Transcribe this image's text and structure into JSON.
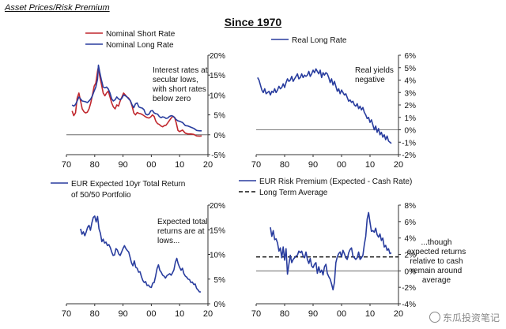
{
  "page": {
    "title": "Asset Prices/Risk Premium",
    "heading": "Since 1970",
    "watermark": "东瓜投资笔记"
  },
  "colors": {
    "blue": "#283c9e",
    "red": "#c0272d",
    "axis": "#333333"
  },
  "chart_data": [
    {
      "type": "line",
      "legend": [
        "Nominal Short Rate",
        "Nominal Long Rate"
      ],
      "annotation": [
        "Interest rates at",
        "secular lows,",
        "with short rates",
        "below zero"
      ],
      "xticks": [
        "70",
        "80",
        "90",
        "00",
        "10",
        "20"
      ],
      "yticks": [
        "-5%",
        "0%",
        "5%",
        "10%",
        "15%",
        "20%"
      ],
      "xlim": [
        1970,
        2020
      ],
      "ylim": [
        -5,
        20
      ],
      "grid": false,
      "series": [
        {
          "name": "Nominal Short Rate",
          "color": "#c0272d",
          "x": [
            1972,
            1972.6,
            1973.2,
            1973.8,
            1974.4,
            1975,
            1975.6,
            1976.2,
            1976.8,
            1977.4,
            1978,
            1978.6,
            1979.2,
            1979.8,
            1980.4,
            1981,
            1981.3,
            1981.7,
            1982.3,
            1983,
            1983.6,
            1984.2,
            1984.8,
            1985.4,
            1986,
            1986.6,
            1987.2,
            1987.8,
            1988.4,
            1989,
            1989.6,
            1990.2,
            1990.8,
            1991.4,
            1992,
            1992.6,
            1993.2,
            1993.8,
            1994.4,
            1995,
            1995.6,
            1996.2,
            1996.8,
            1997.4,
            1998,
            1998.6,
            1999.2,
            1999.8,
            2000.4,
            2001,
            2001.6,
            2002.2,
            2002.8,
            2003.4,
            2004,
            2004.6,
            2005.2,
            2005.8,
            2006.4,
            2007,
            2007.6,
            2008.2,
            2008.8,
            2009.4,
            2010,
            2011,
            2012,
            2013,
            2014,
            2015,
            2016,
            2017,
            2017.8
          ],
          "y": [
            6,
            4.8,
            5.5,
            9.2,
            10.5,
            8.5,
            6.5,
            5.8,
            5.5,
            5.7,
            6.5,
            8,
            10,
            12.2,
            13,
            16,
            17,
            15,
            13,
            10.5,
            9.8,
            10.5,
            11,
            9.5,
            8,
            7,
            6.5,
            7.5,
            7.2,
            8.5,
            9.5,
            10.5,
            10,
            9.5,
            9.2,
            8.5,
            7.2,
            5.5,
            5,
            5.6,
            5.4,
            5.3,
            5.1,
            4.8,
            4.5,
            4.3,
            4.2,
            4.5,
            5,
            4.6,
            3.4,
            2.8,
            2.6,
            2.2,
            2,
            2.3,
            2.4,
            3,
            3.6,
            4.2,
            4.6,
            4.4,
            3,
            1.1,
            0.8,
            1.2,
            0.4,
            0.2,
            0.2,
            0.1,
            -0.3,
            -0.35,
            -0.3
          ]
        },
        {
          "name": "Nominal Long Rate",
          "color": "#283c9e",
          "x": [
            1972,
            1972.6,
            1973.2,
            1973.8,
            1974.4,
            1975,
            1975.6,
            1976.2,
            1976.8,
            1977.4,
            1978,
            1978.6,
            1979.2,
            1979.8,
            1980.4,
            1981,
            1981.3,
            1981.7,
            1982.3,
            1983,
            1983.6,
            1984.2,
            1984.8,
            1985.4,
            1986,
            1986.6,
            1987.2,
            1987.8,
            1988.4,
            1989,
            1989.6,
            1990.2,
            1990.8,
            1991.4,
            1992,
            1992.6,
            1993.2,
            1993.8,
            1994.4,
            1995,
            1995.6,
            1996.2,
            1996.8,
            1997.4,
            1998,
            1998.6,
            1999.2,
            1999.8,
            2000.4,
            2001,
            2001.6,
            2002.2,
            2002.8,
            2003.4,
            2004,
            2004.6,
            2005.2,
            2005.8,
            2006.4,
            2007,
            2007.6,
            2008.2,
            2008.8,
            2009.4,
            2010,
            2011,
            2012,
            2013,
            2014,
            2015,
            2016,
            2017,
            2017.8
          ],
          "y": [
            7.5,
            7.2,
            7.6,
            8.5,
            9.5,
            9,
            8.5,
            8.4,
            8.3,
            8.1,
            8.5,
            9,
            9.8,
            11,
            12,
            14,
            17.5,
            16,
            14,
            12,
            11.8,
            12,
            11.5,
            10.5,
            9,
            8.5,
            8.8,
            9.5,
            9,
            8.8,
            9.2,
            10,
            9.8,
            9.5,
            9,
            8.6,
            7.5,
            6.8,
            7.8,
            8,
            7,
            6.8,
            6.7,
            6.3,
            5.2,
            5,
            5.2,
            6,
            6.1,
            5.5,
            5.3,
            5.2,
            4.6,
            4.3,
            4.5,
            4.4,
            4.1,
            4.2,
            4.6,
            4.8,
            4.7,
            4.3,
            3.8,
            3.5,
            3.4,
            3.1,
            2.3,
            2.2,
            1.9,
            1.6,
            1.1,
            1,
            1
          ]
        }
      ]
    },
    {
      "type": "line",
      "legend": [
        "Real Long Rate"
      ],
      "annotation": [
        "Real yields",
        "negative"
      ],
      "xticks": [
        "70",
        "80",
        "90",
        "00",
        "10",
        "20"
      ],
      "yticks": [
        "-2%",
        "-1%",
        "0%",
        "1%",
        "2%",
        "3%",
        "4%",
        "5%",
        "6%"
      ],
      "xlim": [
        1970,
        2020
      ],
      "ylim": [
        -2,
        6
      ],
      "grid": false,
      "series": [
        {
          "name": "Real Long Rate",
          "color": "#283c9e",
          "x": [
            1970.5,
            1971,
            1971.5,
            1972,
            1972.5,
            1973,
            1973.5,
            1974,
            1974.5,
            1975,
            1975.5,
            1976,
            1976.5,
            1977,
            1977.5,
            1978,
            1978.5,
            1979,
            1979.5,
            1980,
            1980.5,
            1981,
            1981.5,
            1982,
            1982.5,
            1983,
            1983.5,
            1984,
            1984.5,
            1985,
            1985.5,
            1986,
            1986.5,
            1987,
            1987.5,
            1988,
            1988.5,
            1989,
            1989.5,
            1990,
            1990.5,
            1991,
            1991.5,
            1992,
            1992.5,
            1993,
            1993.5,
            1994,
            1994.5,
            1995,
            1995.5,
            1996,
            1996.5,
            1997,
            1997.5,
            1998,
            1998.5,
            1999,
            1999.5,
            2000,
            2000.5,
            2001,
            2001.5,
            2002,
            2002.5,
            2003,
            2003.5,
            2004,
            2004.5,
            2005,
            2005.5,
            2006,
            2006.5,
            2007,
            2007.5,
            2008,
            2008.5,
            2009,
            2009.5,
            2010,
            2010.5,
            2011,
            2011.5,
            2012,
            2012.5,
            2013,
            2013.5,
            2014,
            2014.5,
            2015,
            2015.5,
            2016,
            2016.5,
            2017,
            2017.5
          ],
          "y": [
            4.2,
            4,
            3.6,
            3.2,
            3,
            3.3,
            2.9,
            3,
            3.1,
            2.8,
            3.1,
            3,
            3.3,
            3,
            3.2,
            3.5,
            3.3,
            3.4,
            3.7,
            3.4,
            3.8,
            4.1,
            3.9,
            4,
            4.3,
            3.9,
            4.1,
            4.3,
            4.5,
            4.1,
            4.2,
            4.5,
            4.2,
            4.4,
            4.3,
            4.4,
            4.7,
            4.3,
            4.5,
            4.8,
            4.6,
            4.9,
            4.7,
            4.5,
            4.8,
            4.2,
            4.6,
            4.4,
            4.6,
            4.5,
            4.2,
            3.8,
            4.1,
            3.6,
            3.9,
            3.5,
            3.1,
            3.3,
            2.9,
            3.2,
            3,
            2.8,
            2.9,
            2.6,
            2.3,
            2.4,
            2.2,
            2.3,
            2,
            1.9,
            2.1,
            1.7,
            1.9,
            1.6,
            1.8,
            1.4,
            1.2,
            0.9,
            1,
            0.6,
            0.8,
            0.4,
            0,
            0.3,
            -0.2,
            0.1,
            -0.4,
            -0.2,
            -0.6,
            -0.4,
            -0.8,
            -0.5,
            -0.9,
            -1,
            -1.1
          ]
        }
      ]
    },
    {
      "type": "line",
      "legend": [
        "EUR Expected 10yr Total Return",
        "of 50/50 Portfolio"
      ],
      "annotation": [
        "Expected total",
        "returns are at",
        "lows..."
      ],
      "xticks": [
        "70",
        "80",
        "90",
        "00",
        "10",
        "20"
      ],
      "yticks": [
        "0%",
        "5%",
        "10%",
        "15%",
        "20%"
      ],
      "xlim": [
        1970,
        2020
      ],
      "ylim": [
        0,
        20
      ],
      "grid": false,
      "series": [
        {
          "name": "EUR Expected 10yr Total Return of 50/50 Portfolio",
          "color": "#283c9e",
          "x": [
            1975,
            1975.5,
            1976,
            1976.5,
            1977,
            1977.5,
            1978,
            1978.5,
            1979,
            1979.5,
            1980,
            1980.5,
            1981,
            1981.5,
            1982,
            1982.5,
            1983,
            1983.5,
            1984,
            1984.5,
            1985,
            1985.5,
            1986,
            1986.5,
            1987,
            1987.5,
            1988,
            1988.5,
            1989,
            1989.5,
            1990,
            1990.5,
            1991,
            1991.5,
            1992,
            1992.5,
            1993,
            1993.5,
            1994,
            1994.5,
            1995,
            1995.5,
            1996,
            1996.5,
            1997,
            1997.5,
            1998,
            1998.5,
            1999,
            1999.5,
            2000,
            2000.5,
            2001,
            2001.5,
            2002,
            2002.5,
            2003,
            2003.5,
            2004,
            2004.5,
            2005,
            2005.5,
            2006,
            2006.5,
            2007,
            2007.5,
            2008,
            2008.5,
            2009,
            2009.5,
            2010,
            2010.5,
            2011,
            2011.5,
            2012,
            2012.5,
            2013,
            2013.5,
            2014,
            2014.5,
            2015,
            2015.5,
            2016,
            2016.5,
            2017,
            2017.5
          ],
          "y": [
            15.2,
            14.1,
            14.6,
            13.8,
            14.6,
            15.5,
            15.9,
            14.9,
            16.4,
            17.5,
            17.8,
            16.6,
            17.7,
            15.2,
            14.3,
            12.6,
            13.1,
            12.3,
            12.5,
            11.8,
            12,
            11.4,
            10.5,
            9.8,
            9.9,
            11.2,
            10.9,
            10.1,
            9.8,
            10.5,
            11.2,
            11.8,
            11.2,
            10.8,
            10.5,
            9.4,
            8.3,
            7.7,
            8.7,
            7.4,
            7.2,
            6.4,
            6.5,
            5.5,
            4.7,
            4.3,
            4.5,
            3.7,
            3.8,
            3.4,
            3.3,
            4.2,
            4.3,
            5.6,
            7.1,
            7.9,
            6.8,
            6.4,
            5.8,
            5.6,
            5.2,
            5.7,
            5.9,
            6.1,
            5.8,
            6.3,
            6.9,
            8.4,
            9.2,
            8.1,
            7.4,
            6.8,
            7.2,
            6.1,
            5.6,
            5.4,
            5,
            4.9,
            4.3,
            4.4,
            3.9,
            4,
            3.1,
            2.8,
            2.4,
            2.4
          ]
        }
      ]
    },
    {
      "type": "line",
      "legend": [
        "EUR Risk Premium (Expected - Cash Rate)",
        "Long Term Average"
      ],
      "annotation": [
        "...though",
        "expected returns",
        "relative to cash",
        "remain around",
        "average"
      ],
      "xticks": [
        "70",
        "80",
        "90",
        "00",
        "10",
        "20"
      ],
      "yticks": [
        "-4%",
        "-2%",
        "0%",
        "2%",
        "4%",
        "6%",
        "8%"
      ],
      "xlim": [
        1970,
        2020
      ],
      "ylim": [
        -4,
        8
      ],
      "grid": false,
      "reference_line": {
        "label": "Long Term Average",
        "y": 1.7
      },
      "series": [
        {
          "name": "EUR Risk Premium (Expected - Cash Rate)",
          "color": "#283c9e",
          "x": [
            1975,
            1975.5,
            1976,
            1976.5,
            1977,
            1977.5,
            1978,
            1978.5,
            1979,
            1979.5,
            1980,
            1980.5,
            1981,
            1981.5,
            1982,
            1982.5,
            1983,
            1983.5,
            1984,
            1984.5,
            1985,
            1985.5,
            1986,
            1986.5,
            1987,
            1987.5,
            1988,
            1988.5,
            1989,
            1989.5,
            1990,
            1990.5,
            1991,
            1991.5,
            1992,
            1992.5,
            1993,
            1993.5,
            1994,
            1994.5,
            1995,
            1995.5,
            1996,
            1996.5,
            1997,
            1997.5,
            1998,
            1998.5,
            1999,
            1999.5,
            2000,
            2000.5,
            2001,
            2001.5,
            2002,
            2002.5,
            2003,
            2003.5,
            2004,
            2004.5,
            2005,
            2005.5,
            2006,
            2006.5,
            2007,
            2007.5,
            2008,
            2008.5,
            2009,
            2009.5,
            2010,
            2010.5,
            2011,
            2011.5,
            2012,
            2012.5,
            2013,
            2013.5,
            2014,
            2014.5,
            2015,
            2015.5,
            2016,
            2016.5,
            2017,
            2017.5
          ],
          "y": [
            5.3,
            4.2,
            4.9,
            3.8,
            3.9,
            3.4,
            2.4,
            2.8,
            1.6,
            2.9,
            1.3,
            2.7,
            -0.4,
            0.8,
            1.9,
            1,
            1.4,
            1.6,
            1.8,
            1.9,
            2.4,
            2.2,
            2.4,
            1.8,
            1.6,
            2.3,
            1.4,
            0.9,
            1.5,
            0.6,
            0.4,
            0.8,
            1,
            -0.3,
            0.5,
            -0.2,
            0.1,
            -0.5,
            0.5,
            0.8,
            -0.3,
            -0.7,
            -1,
            -1.6,
            -2.3,
            -1.4,
            1,
            1.7,
            2.1,
            2.3,
            1.7,
            2.5,
            2.1,
            1.6,
            1.4,
            2.2,
            2.6,
            2.8,
            1.8,
            1.6,
            1.4,
            1.6,
            2.3,
            1.4,
            1.6,
            1.9,
            3.2,
            4.2,
            6.3,
            7.1,
            5.9,
            4.8,
            4.9,
            4.7,
            5.2,
            4.4,
            4.1,
            4.5,
            3.7,
            4,
            2.9,
            3.1,
            2.5,
            2.7,
            2.1,
            2.2
          ]
        }
      ]
    }
  ]
}
